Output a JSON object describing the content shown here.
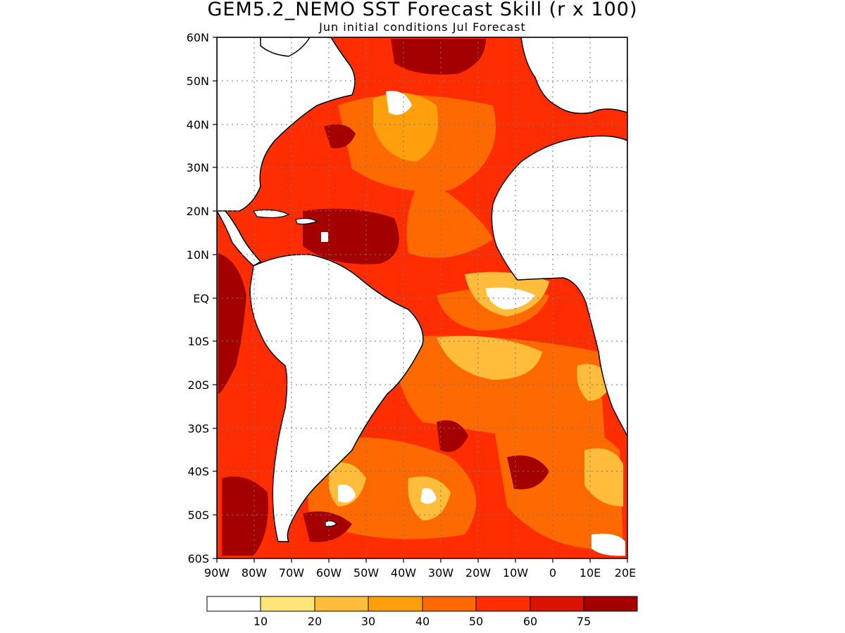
{
  "title": "GEM5.2_NEMO SST Forecast Skill (r x 100)",
  "subtitle": "Jun initial conditions  Jul Forecast",
  "lat_labels": [
    "60N",
    "50N",
    "40N",
    "30N",
    "20N",
    "10N",
    "EQ",
    "10S",
    "20S",
    "30S",
    "40S",
    "50S",
    "60S"
  ],
  "lon_labels": [
    "90W",
    "80W",
    "70W",
    "60W",
    "50W",
    "40W",
    "30W",
    "20W",
    "10W",
    "0",
    "10E",
    "20E"
  ],
  "map": {
    "region": {
      "lon_min": -90,
      "lon_max": 20,
      "lat_min": -60,
      "lat_max": 60
    },
    "land_color": "#ffffff",
    "grid": true
  },
  "colorbar": {
    "levels": [
      "10",
      "20",
      "30",
      "40",
      "50",
      "60",
      "75"
    ],
    "colors": [
      "#ffffff",
      "#ffe479",
      "#ffbd3b",
      "#ff9f0c",
      "#ff6a00",
      "#ff2d00",
      "#d81400",
      "#a40000"
    ]
  }
}
